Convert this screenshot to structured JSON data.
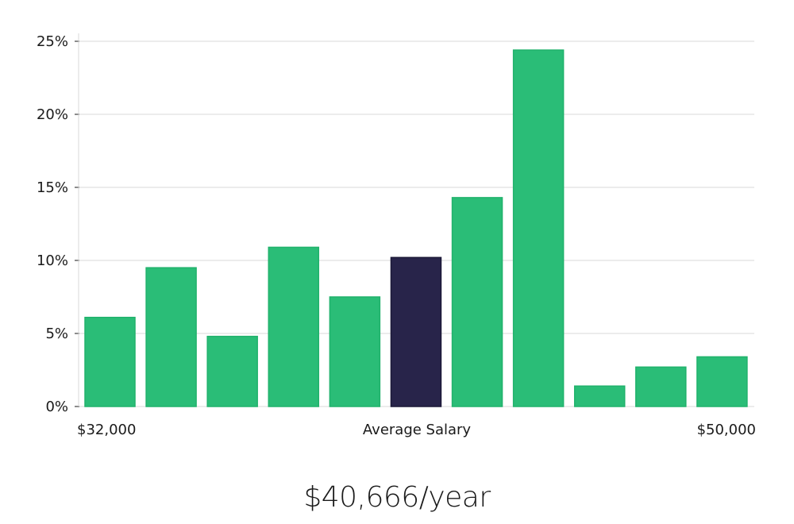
{
  "chart_data": {
    "type": "bar",
    "categories": [
      "1",
      "2",
      "3",
      "4",
      "5",
      "6",
      "7",
      "8",
      "9",
      "10",
      "11"
    ],
    "values": [
      6.1,
      9.5,
      4.8,
      10.9,
      7.5,
      10.2,
      14.3,
      24.4,
      1.4,
      2.7,
      3.4
    ],
    "highlight_index": 5,
    "ylim": [
      0,
      25
    ],
    "yticks": [
      0,
      5,
      10,
      15,
      20,
      25
    ],
    "ytick_labels": [
      "0%",
      "5%",
      "10%",
      "15%",
      "20%",
      "25%"
    ],
    "x_labels": {
      "left": "$32,000",
      "center": "Average Salary",
      "right": "$50,000"
    },
    "grid": true,
    "colors": {
      "bar": "#2abd77",
      "bar_edge": "#21b26c",
      "highlight": "#28244a",
      "grid": "#d9d9d9"
    }
  },
  "salary_caption": "$40,666/year"
}
